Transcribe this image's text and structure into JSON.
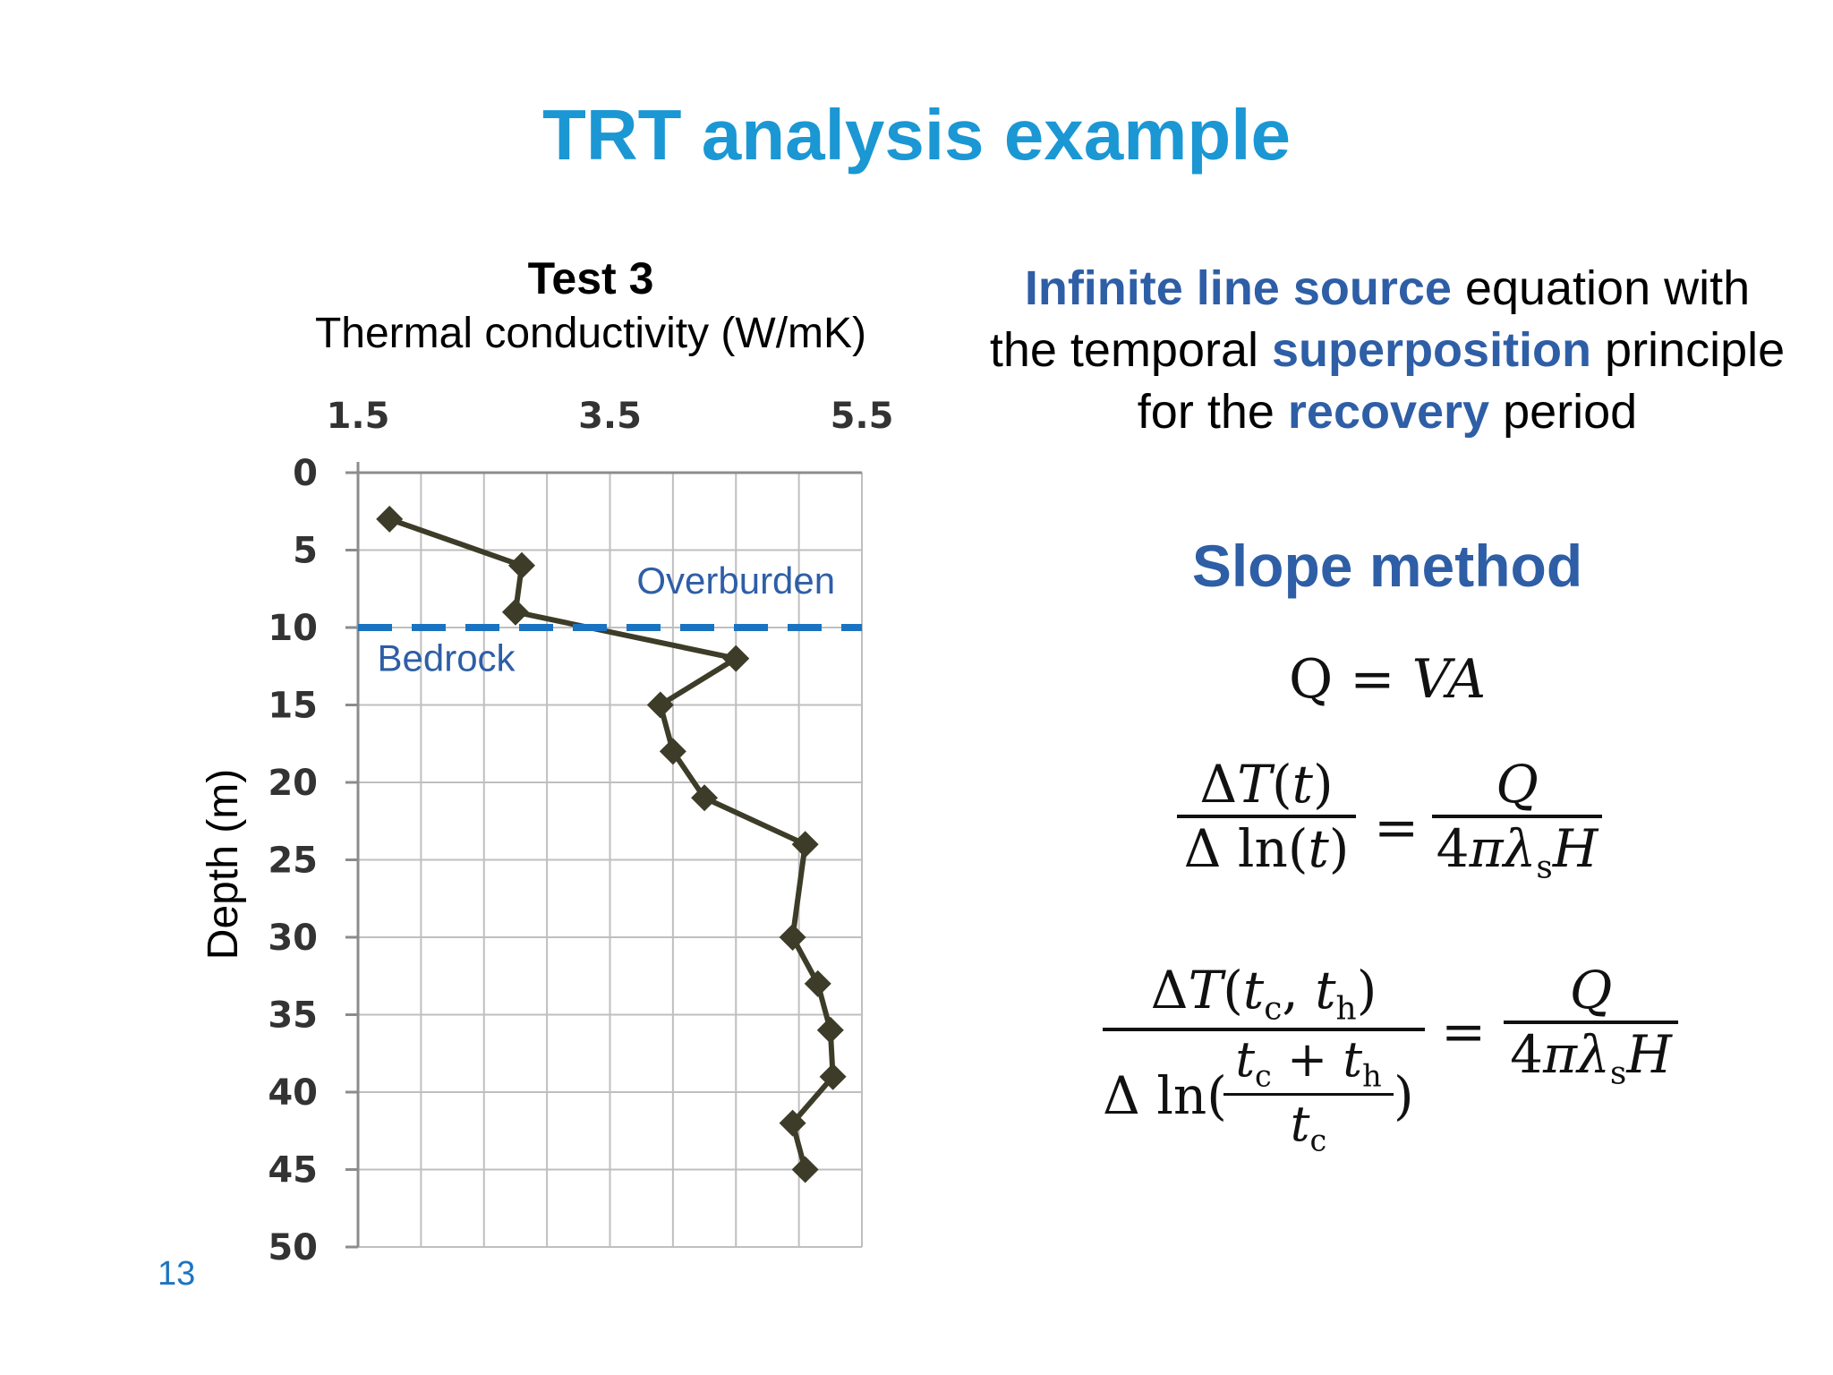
{
  "slide": {
    "title": "TRT analysis example",
    "page_number": "13"
  },
  "chart_data": {
    "type": "line",
    "title": "Test 3",
    "subtitle": "Thermal conductivity (W/mK)",
    "xlabel": "Thermal conductivity (W/mK)",
    "ylabel": "Depth (m)",
    "x_axis_position": "top",
    "y_axis_inverted": true,
    "xlim": [
      1.5,
      5.5
    ],
    "ylim": [
      0,
      50
    ],
    "x_tick_labels": [
      "1.5",
      "3.5",
      "5.5"
    ],
    "y_tick_labels": [
      "0",
      "5",
      "10",
      "15",
      "20",
      "25",
      "30",
      "35",
      "40",
      "45",
      "50"
    ],
    "grid": true,
    "series": [
      {
        "marker": "diamond",
        "color": "#3c3c28",
        "points": [
          {
            "x": 1.75,
            "y": 3
          },
          {
            "x": 2.8,
            "y": 6
          },
          {
            "x": 2.75,
            "y": 9
          },
          {
            "x": 4.5,
            "y": 12
          },
          {
            "x": 3.9,
            "y": 15
          },
          {
            "x": 4.0,
            "y": 18
          },
          {
            "x": 4.25,
            "y": 21
          },
          {
            "x": 5.05,
            "y": 24
          },
          {
            "x": 4.95,
            "y": 30
          },
          {
            "x": 5.15,
            "y": 33
          },
          {
            "x": 5.25,
            "y": 36
          },
          {
            "x": 5.27,
            "y": 39
          },
          {
            "x": 4.95,
            "y": 42
          },
          {
            "x": 5.05,
            "y": 45
          }
        ]
      }
    ],
    "boundary": {
      "y": 10,
      "style": "dashed",
      "color": "#1a73c0"
    },
    "annotations": [
      {
        "text": "Overburden",
        "x": 4.5,
        "y": 7.8
      },
      {
        "text": "Bedrock",
        "x": 2.2,
        "y": 12.8
      }
    ]
  },
  "description": {
    "part1_highlight": "Infinite line source",
    "part2": " equation with the temporal ",
    "part3_highlight": "superposition",
    "part4": " principle for the ",
    "part5_highlight": "recovery",
    "part6": " period"
  },
  "method": {
    "title": "Slope method",
    "eq1": "Q = VA",
    "eq2_num": "ΔT(t)",
    "eq2_den": "Δ ln(t)",
    "eq3_num": "ΔT(tc, th)",
    "eq3_den_prefix": "Δ ln(",
    "eq3_den_inner_num": "tc + th",
    "eq3_den_inner_den": "tc",
    "eq3_den_suffix": ")",
    "rhs_num": "Q",
    "rhs_den": "4πλsH",
    "equals": "="
  },
  "colors": {
    "title": "#1b97d4",
    "highlight": "#2e5ea6",
    "line": "#3c3c28",
    "grid": "#bfbfbf",
    "dashed": "#1a73c0"
  }
}
